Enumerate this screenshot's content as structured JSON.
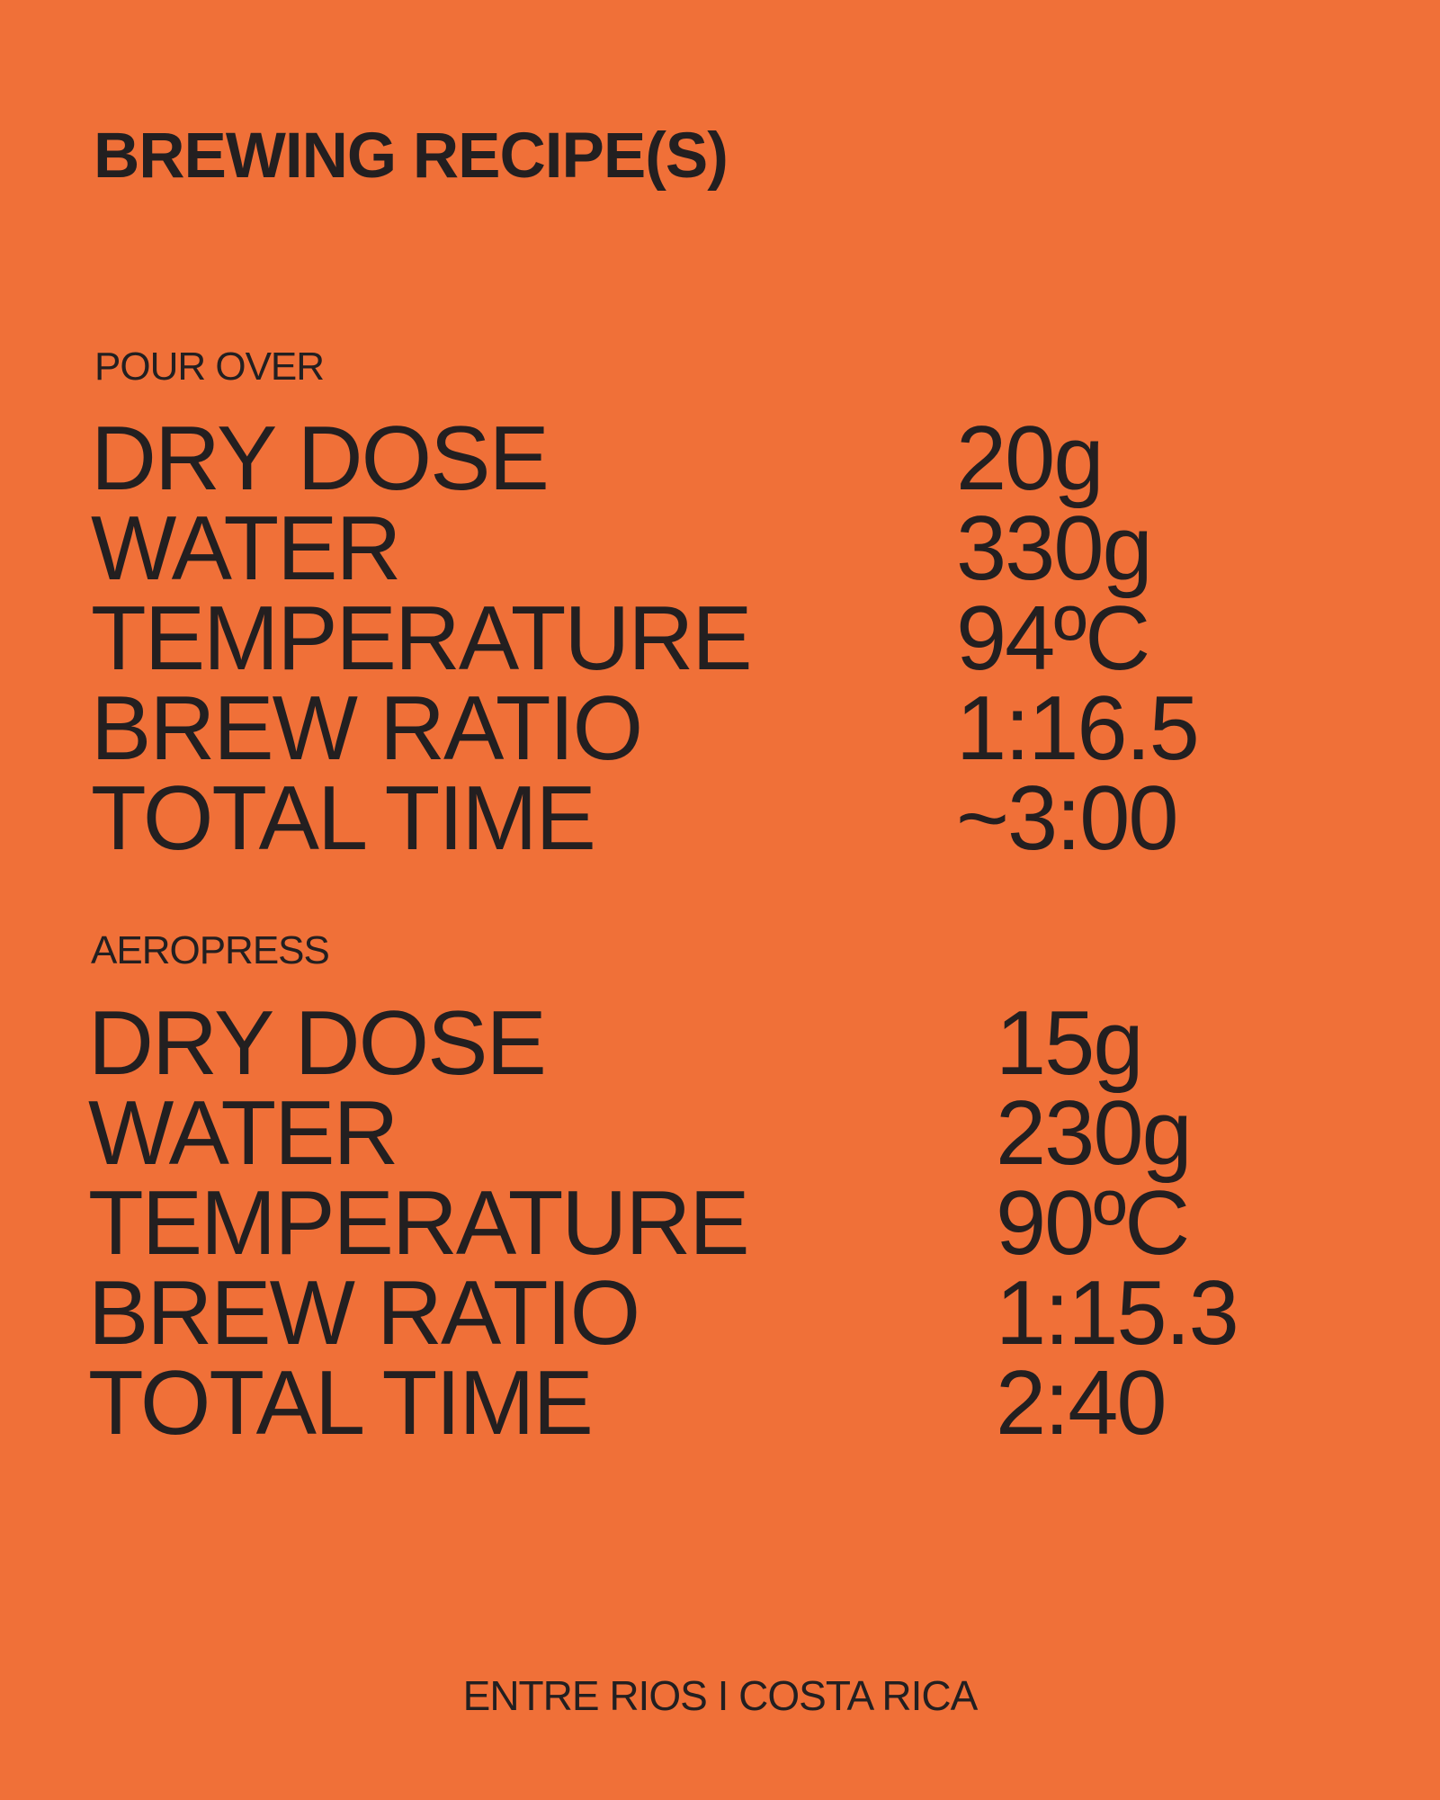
{
  "title": "BREWING RECIPE(S)",
  "colors": {
    "background": "#F07038",
    "text": "#231F20"
  },
  "recipes": [
    {
      "method": "POUR OVER",
      "rows": [
        {
          "label": "DRY DOSE",
          "value": "20g"
        },
        {
          "label": "WATER",
          "value": "330g"
        },
        {
          "label": "TEMPERATURE",
          "value": "94ºC"
        },
        {
          "label": "BREW RATIO",
          "value": "1:16.5"
        },
        {
          "label": "TOTAL TIME",
          "value": "~3:00"
        }
      ]
    },
    {
      "method": "AEROPRESS",
      "rows": [
        {
          "label": "DRY DOSE",
          "value": "15g"
        },
        {
          "label": "WATER",
          "value": "230g"
        },
        {
          "label": "TEMPERATURE",
          "value": "90ºC"
        },
        {
          "label": "BREW RATIO",
          "value": "1:15.3"
        },
        {
          "label": "TOTAL TIME",
          "value": "2:40"
        }
      ]
    }
  ],
  "footer": "ENTRE RIOS I COSTA RICA"
}
